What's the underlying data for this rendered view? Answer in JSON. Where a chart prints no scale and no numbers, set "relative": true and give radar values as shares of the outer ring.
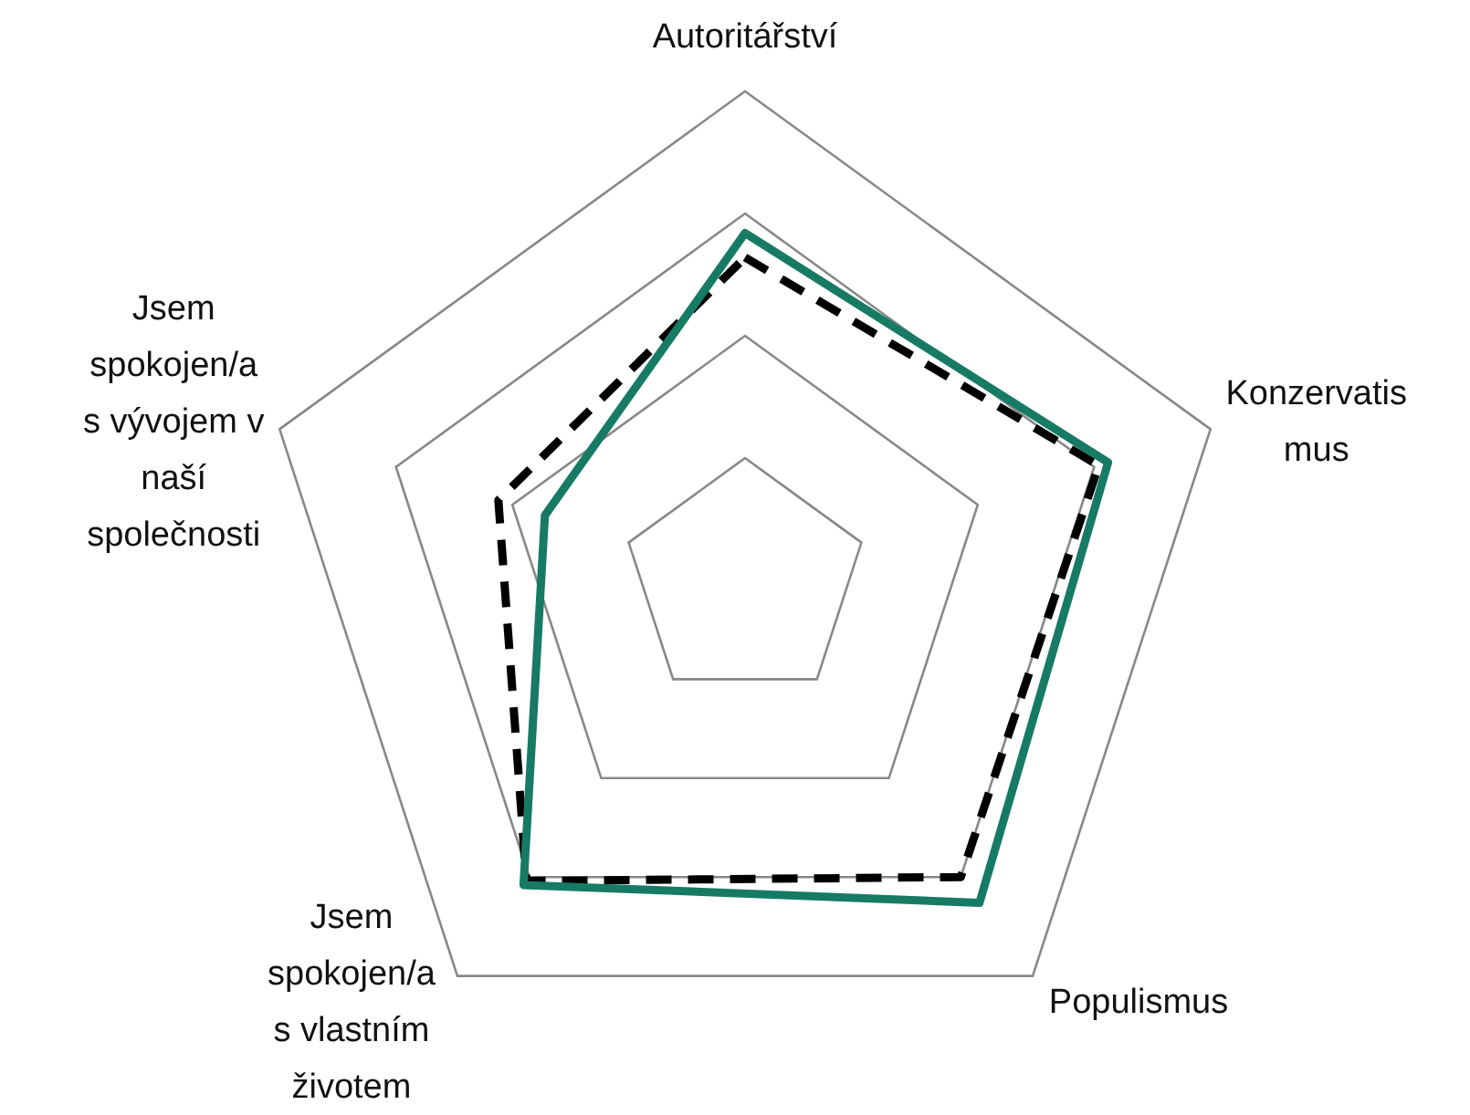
{
  "chart_data": {
    "type": "radar",
    "relative": true,
    "categories": [
      "Autoritářství",
      "Konzervatismus",
      "Populismus",
      "Jsem spokojen/a s vlastním životem",
      "Jsem spokojen/a s vývojem v naší společnosti"
    ],
    "series": [
      {
        "color": "#000000",
        "line_style": "dashed",
        "values": [
          0.66,
          0.76,
          0.75,
          0.76,
          0.53
        ]
      },
      {
        "color": "#177a65",
        "line_style": "solid",
        "values": [
          0.71,
          0.78,
          0.815,
          0.77,
          0.43
        ]
      }
    ]
  }
}
